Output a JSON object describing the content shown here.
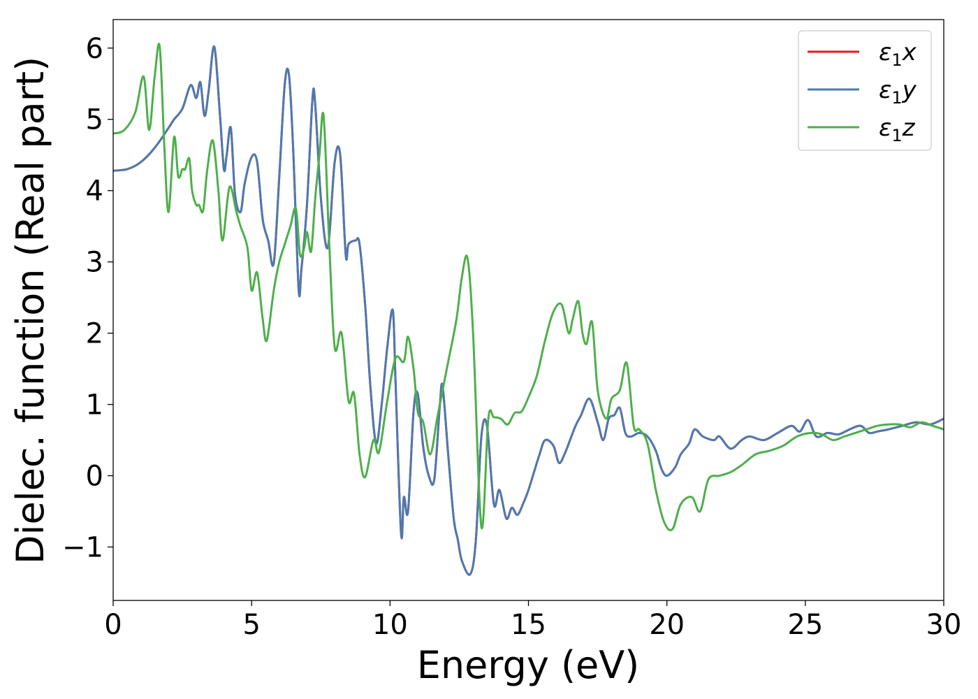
{
  "chart_data": {
    "type": "line",
    "xlabel": "Energy (eV)",
    "ylabel": "Dielec. function (Real part)",
    "xlim": [
      0,
      30
    ],
    "ylim": [
      -1.75,
      6.4
    ],
    "xticks": [
      0,
      5,
      10,
      15,
      20,
      25,
      30
    ],
    "yticks": [
      -1,
      0,
      1,
      2,
      3,
      4,
      5,
      6
    ],
    "ytick_labels": [
      "−1",
      "0",
      "1",
      "2",
      "3",
      "4",
      "5",
      "6"
    ],
    "grid": false,
    "legend_position": "top-right",
    "series": [
      {
        "name": "ε1x",
        "legend_base": "ε",
        "legend_sub": "1",
        "legend_suffix": "x",
        "color": "#e41a1c",
        "x": [
          0,
          0.5,
          1.0,
          1.5,
          2.0,
          2.2,
          2.5,
          2.8,
          3.0,
          3.15,
          3.3,
          3.45,
          3.65,
          3.85,
          4.0,
          4.1,
          4.25,
          4.4,
          4.6,
          4.75,
          5.0,
          5.2,
          5.4,
          5.6,
          5.8,
          6.0,
          6.2,
          6.35,
          6.5,
          6.7,
          6.8,
          7.0,
          7.2,
          7.3,
          7.5,
          7.75,
          8.0,
          8.2,
          8.4,
          8.5,
          8.75,
          8.9,
          9.1,
          9.3,
          9.5,
          9.7,
          9.9,
          10.1,
          10.2,
          10.4,
          10.5,
          10.65,
          10.85,
          11.0,
          11.2,
          11.4,
          11.6,
          11.8,
          11.9,
          12.1,
          12.3,
          12.45,
          12.6,
          12.9,
          13.1,
          13.3,
          13.5,
          13.75,
          13.95,
          14.2,
          14.4,
          14.6,
          14.8,
          15.0,
          15.2,
          15.4,
          15.6,
          15.9,
          16.1,
          16.3,
          16.5,
          16.7,
          16.9,
          17.2,
          17.5,
          17.7,
          17.9,
          18.1,
          18.3,
          18.5,
          18.7,
          19.0,
          19.3,
          19.6,
          19.8,
          20.0,
          20.3,
          20.5,
          20.8,
          21.0,
          21.3,
          21.7,
          21.9,
          22.3,
          22.7,
          23.0,
          23.5,
          24.0,
          24.5,
          24.8,
          25.1,
          25.4,
          25.8,
          26.2,
          26.6,
          27.0,
          27.3,
          27.6,
          28.0,
          28.5,
          29.0,
          29.5,
          30.0
        ],
        "y": [
          4.28,
          4.3,
          4.4,
          4.6,
          4.88,
          5.0,
          5.15,
          5.48,
          5.3,
          5.52,
          5.05,
          5.4,
          6.02,
          5.1,
          4.3,
          4.5,
          4.88,
          3.95,
          3.7,
          4.1,
          4.47,
          4.4,
          3.6,
          3.3,
          2.98,
          4.2,
          5.5,
          5.62,
          4.6,
          2.62,
          2.9,
          3.8,
          5.3,
          5.2,
          3.9,
          3.2,
          4.4,
          4.5,
          3.1,
          3.25,
          3.3,
          3.25,
          2.4,
          1.2,
          0.45,
          1.0,
          1.8,
          2.32,
          1.3,
          -0.82,
          -0.3,
          -0.5,
          0.9,
          1.15,
          0.4,
          0.0,
          -0.05,
          1.0,
          1.25,
          0.3,
          -0.6,
          -0.9,
          -1.2,
          -1.38,
          -0.9,
          0.55,
          0.7,
          -0.4,
          -0.2,
          -0.6,
          -0.45,
          -0.55,
          -0.4,
          -0.2,
          0.05,
          0.3,
          0.5,
          0.42,
          0.18,
          0.3,
          0.5,
          0.7,
          0.85,
          1.08,
          0.75,
          0.5,
          0.8,
          0.85,
          0.95,
          0.6,
          0.55,
          0.6,
          0.55,
          0.35,
          0.1,
          0.0,
          0.12,
          0.3,
          0.45,
          0.65,
          0.55,
          0.5,
          0.55,
          0.38,
          0.5,
          0.55,
          0.5,
          0.6,
          0.7,
          0.62,
          0.78,
          0.55,
          0.6,
          0.58,
          0.65,
          0.7,
          0.6,
          0.62,
          0.65,
          0.7,
          0.75,
          0.72,
          0.8
        ]
      },
      {
        "name": "ε1y",
        "legend_base": "ε",
        "legend_sub": "1",
        "legend_suffix": "y",
        "color": "#4c7ab0",
        "x": [
          0,
          0.5,
          1.0,
          1.5,
          2.0,
          2.2,
          2.5,
          2.8,
          3.0,
          3.15,
          3.3,
          3.45,
          3.65,
          3.85,
          4.0,
          4.1,
          4.25,
          4.4,
          4.6,
          4.75,
          5.0,
          5.2,
          5.4,
          5.6,
          5.8,
          6.0,
          6.2,
          6.35,
          6.5,
          6.7,
          6.8,
          7.0,
          7.2,
          7.3,
          7.5,
          7.75,
          8.0,
          8.2,
          8.4,
          8.5,
          8.75,
          8.9,
          9.1,
          9.3,
          9.5,
          9.7,
          9.9,
          10.1,
          10.2,
          10.4,
          10.5,
          10.65,
          10.85,
          11.0,
          11.2,
          11.4,
          11.6,
          11.8,
          11.9,
          12.1,
          12.3,
          12.45,
          12.6,
          12.9,
          13.1,
          13.3,
          13.5,
          13.75,
          13.95,
          14.2,
          14.4,
          14.6,
          14.8,
          15.0,
          15.2,
          15.4,
          15.6,
          15.9,
          16.1,
          16.3,
          16.5,
          16.7,
          16.9,
          17.2,
          17.5,
          17.7,
          17.9,
          18.1,
          18.3,
          18.5,
          18.7,
          19.0,
          19.3,
          19.6,
          19.8,
          20.0,
          20.3,
          20.5,
          20.8,
          21.0,
          21.3,
          21.7,
          21.9,
          22.3,
          22.7,
          23.0,
          23.5,
          24.0,
          24.5,
          24.8,
          25.1,
          25.4,
          25.8,
          26.2,
          26.6,
          27.0,
          27.3,
          27.6,
          28.0,
          28.5,
          29.0,
          29.5,
          30.0
        ],
        "y": [
          4.28,
          4.3,
          4.4,
          4.6,
          4.88,
          5.0,
          5.15,
          5.48,
          5.3,
          5.52,
          5.05,
          5.4,
          6.02,
          5.1,
          4.3,
          4.5,
          4.88,
          3.95,
          3.7,
          4.1,
          4.47,
          4.4,
          3.6,
          3.3,
          2.98,
          4.2,
          5.5,
          5.62,
          4.6,
          2.62,
          2.9,
          3.8,
          5.3,
          5.2,
          3.9,
          3.2,
          4.4,
          4.5,
          3.1,
          3.25,
          3.3,
          3.25,
          2.4,
          1.2,
          0.45,
          1.0,
          1.8,
          2.32,
          1.3,
          -0.82,
          -0.3,
          -0.5,
          0.9,
          1.15,
          0.4,
          0.0,
          -0.05,
          1.0,
          1.25,
          0.3,
          -0.6,
          -0.9,
          -1.2,
          -1.38,
          -0.9,
          0.55,
          0.7,
          -0.4,
          -0.2,
          -0.6,
          -0.45,
          -0.55,
          -0.4,
          -0.2,
          0.05,
          0.3,
          0.5,
          0.42,
          0.18,
          0.3,
          0.5,
          0.7,
          0.85,
          1.08,
          0.75,
          0.5,
          0.8,
          0.85,
          0.95,
          0.6,
          0.55,
          0.6,
          0.55,
          0.35,
          0.1,
          0.0,
          0.12,
          0.3,
          0.45,
          0.65,
          0.55,
          0.5,
          0.55,
          0.38,
          0.5,
          0.55,
          0.5,
          0.6,
          0.7,
          0.62,
          0.78,
          0.55,
          0.6,
          0.58,
          0.65,
          0.7,
          0.6,
          0.62,
          0.65,
          0.7,
          0.75,
          0.72,
          0.8
        ]
      },
      {
        "name": "ε1z",
        "legend_base": "ε",
        "legend_sub": "1",
        "legend_suffix": "z",
        "color": "#4daf4a",
        "x": [
          0,
          0.4,
          0.8,
          1.1,
          1.3,
          1.5,
          1.68,
          1.85,
          2.0,
          2.2,
          2.35,
          2.5,
          2.6,
          2.75,
          2.85,
          3.0,
          3.1,
          3.25,
          3.4,
          3.6,
          3.8,
          3.95,
          4.2,
          4.45,
          4.6,
          4.85,
          5.0,
          5.2,
          5.4,
          5.55,
          5.8,
          6.0,
          6.2,
          6.4,
          6.6,
          6.75,
          6.9,
          7.0,
          7.15,
          7.3,
          7.45,
          7.6,
          7.8,
          8.0,
          8.25,
          8.5,
          8.7,
          8.9,
          9.1,
          9.4,
          9.6,
          9.9,
          10.2,
          10.5,
          10.65,
          10.85,
          11.0,
          11.2,
          11.45,
          11.7,
          11.9,
          12.1,
          12.4,
          12.6,
          12.8,
          13.0,
          13.3,
          13.55,
          13.75,
          14.0,
          14.25,
          14.5,
          14.75,
          15.0,
          15.3,
          15.6,
          15.9,
          16.2,
          16.45,
          16.6,
          16.8,
          16.95,
          17.1,
          17.3,
          17.5,
          17.8,
          18.0,
          18.3,
          18.55,
          18.8,
          19.0,
          19.3,
          19.6,
          19.9,
          20.2,
          20.5,
          20.9,
          21.2,
          21.5,
          21.9,
          22.3,
          22.7,
          23.2,
          23.7,
          24.2,
          24.7,
          25.2,
          25.6,
          26.0,
          26.4,
          26.8,
          27.2,
          27.6,
          28.0,
          28.4,
          28.8,
          29.2,
          29.6,
          30.0
        ],
        "y": [
          4.8,
          4.85,
          5.1,
          5.6,
          4.85,
          5.6,
          6.02,
          4.6,
          3.7,
          4.75,
          4.2,
          4.3,
          4.3,
          4.45,
          4.0,
          3.8,
          3.8,
          3.72,
          4.3,
          4.7,
          4.0,
          3.3,
          4.05,
          3.7,
          3.5,
          3.2,
          2.6,
          2.85,
          2.2,
          1.9,
          2.6,
          3.0,
          3.25,
          3.5,
          3.75,
          3.1,
          3.2,
          3.42,
          3.15,
          3.9,
          4.5,
          5.05,
          3.3,
          1.8,
          2.0,
          1.05,
          1.15,
          0.3,
          -0.02,
          0.5,
          0.33,
          1.05,
          1.65,
          1.6,
          1.95,
          1.5,
          0.9,
          0.75,
          0.3,
          0.8,
          1.2,
          1.6,
          2.2,
          2.8,
          3.05,
          2.0,
          -0.72,
          0.8,
          0.82,
          0.8,
          0.72,
          0.88,
          0.9,
          1.1,
          1.4,
          1.9,
          2.3,
          2.4,
          2.0,
          2.2,
          2.45,
          2.0,
          1.85,
          2.15,
          1.2,
          0.8,
          1.08,
          1.2,
          1.58,
          0.7,
          0.65,
          0.45,
          -0.2,
          -0.65,
          -0.75,
          -0.4,
          -0.3,
          -0.5,
          -0.05,
          0.0,
          0.05,
          0.15,
          0.3,
          0.35,
          0.42,
          0.55,
          0.6,
          0.58,
          0.5,
          0.55,
          0.6,
          0.65,
          0.7,
          0.72,
          0.72,
          0.68,
          0.75,
          0.7,
          0.65
        ]
      }
    ]
  }
}
